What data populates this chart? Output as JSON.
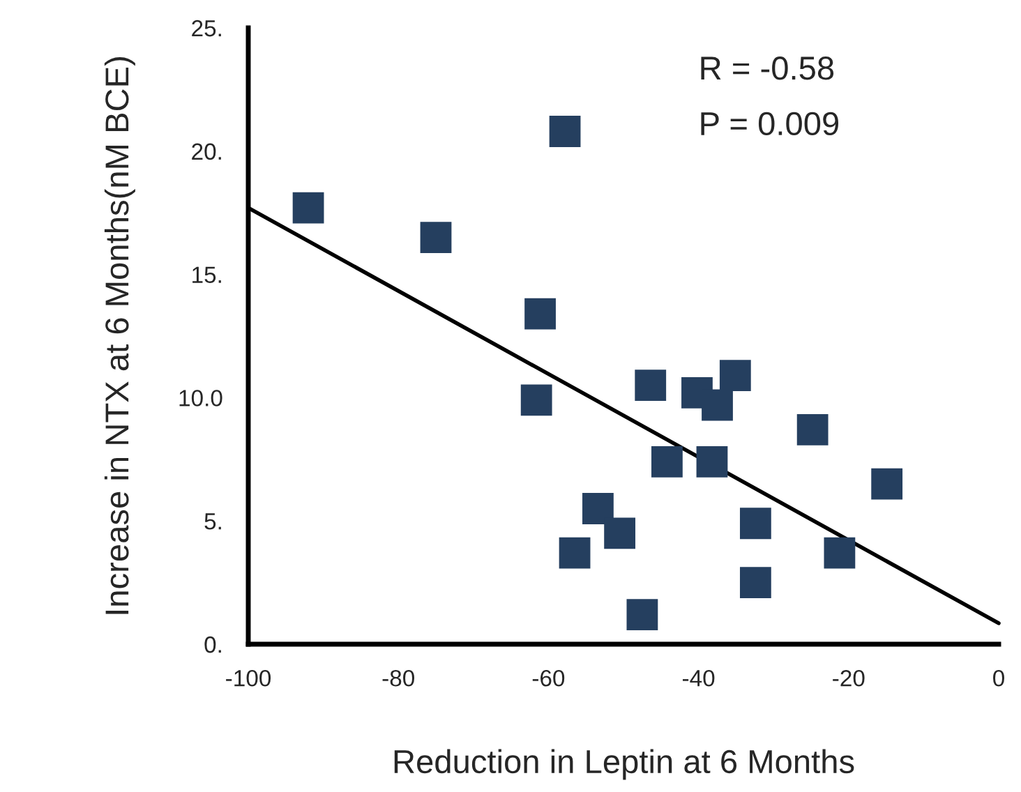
{
  "chart_data": {
    "type": "scatter",
    "xlabel": "Reduction in Leptin at 6 Months",
    "ylabel": "Increase in NTX at 6 Months(nM BCE)",
    "annotations": [
      "R = -0.58",
      "P = 0.009"
    ],
    "series": [
      {
        "color": "#253f5f",
        "marker": "square",
        "x": [
          -92.0,
          -75.0,
          -57.8,
          -61.1,
          -61.6,
          -46.4,
          -40.2,
          -37.5,
          -35.1,
          -24.8,
          -44.2,
          -38.2,
          -53.4,
          -50.5,
          -56.5,
          -47.5,
          -32.4,
          -32.4,
          -21.2,
          -14.9
        ],
        "values": [
          17.7,
          16.5,
          20.8,
          13.4,
          9.9,
          10.5,
          10.2,
          9.7,
          10.9,
          8.7,
          7.4,
          7.4,
          5.5,
          4.5,
          3.7,
          1.2,
          4.9,
          2.5,
          3.7,
          6.5
        ]
      },
      {
        "type": "line",
        "color": "#000000",
        "line_style": "solid",
        "x": [
          -100,
          0
        ],
        "values": [
          17.7,
          0.85
        ]
      }
    ],
    "xlim": [
      -100,
      0
    ],
    "xticks": [
      -100,
      -80,
      -60,
      -40,
      -20,
      0
    ],
    "ylim": [
      0,
      25
    ],
    "yticks": [
      {
        "value": 0,
        "label": "0."
      },
      {
        "value": 5,
        "label": "5."
      },
      {
        "value": 10,
        "label": "10.0"
      },
      {
        "value": 15,
        "label": "15."
      },
      {
        "value": 20,
        "label": "20."
      },
      {
        "value": 25,
        "label": "25."
      }
    ],
    "grid": false,
    "legend": false
  }
}
